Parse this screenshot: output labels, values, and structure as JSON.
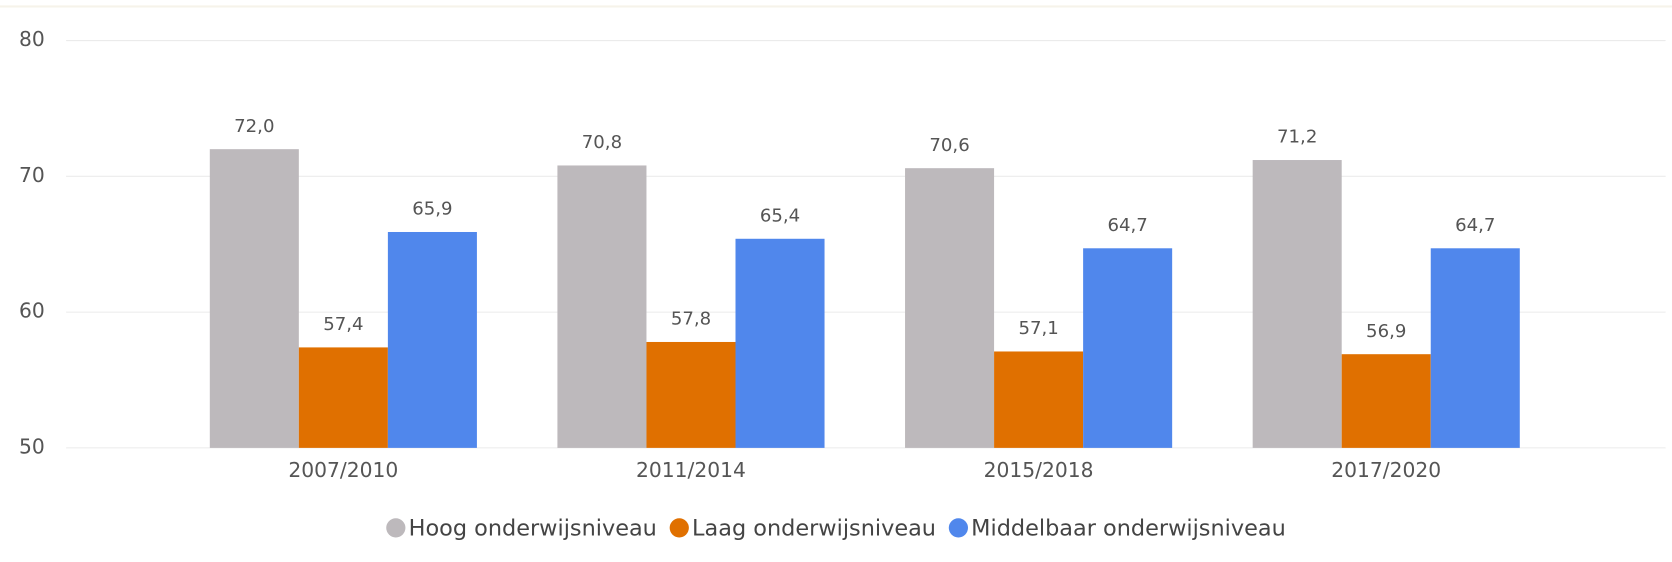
{
  "chart_data": {
    "type": "bar",
    "categories": [
      "2007/2010",
      "2011/2014",
      "2015/2018",
      "2017/2020"
    ],
    "series": [
      {
        "name": "Hoog onderwijsniveau",
        "color": "#bdb9bc",
        "values": [
          72.0,
          70.8,
          70.6,
          71.2
        ],
        "value_labels": [
          "72,0",
          "70,8",
          "70,6",
          "71,2"
        ]
      },
      {
        "name": "Laag onderwijsniveau",
        "color": "#e07000",
        "values": [
          57.4,
          57.8,
          57.1,
          56.9
        ],
        "value_labels": [
          "57,4",
          "57,8",
          "57,1",
          "56,9"
        ]
      },
      {
        "name": "Middelbaar onderwijsniveau",
        "color": "#5087ec",
        "values": [
          65.9,
          65.4,
          64.7,
          64.7
        ],
        "value_labels": [
          "65,9",
          "65,4",
          "64,7",
          "64,7"
        ]
      }
    ],
    "ylim": [
      50,
      80
    ],
    "yticks": [
      50,
      60,
      70,
      80
    ],
    "grid": true,
    "legend": "bottom"
  }
}
